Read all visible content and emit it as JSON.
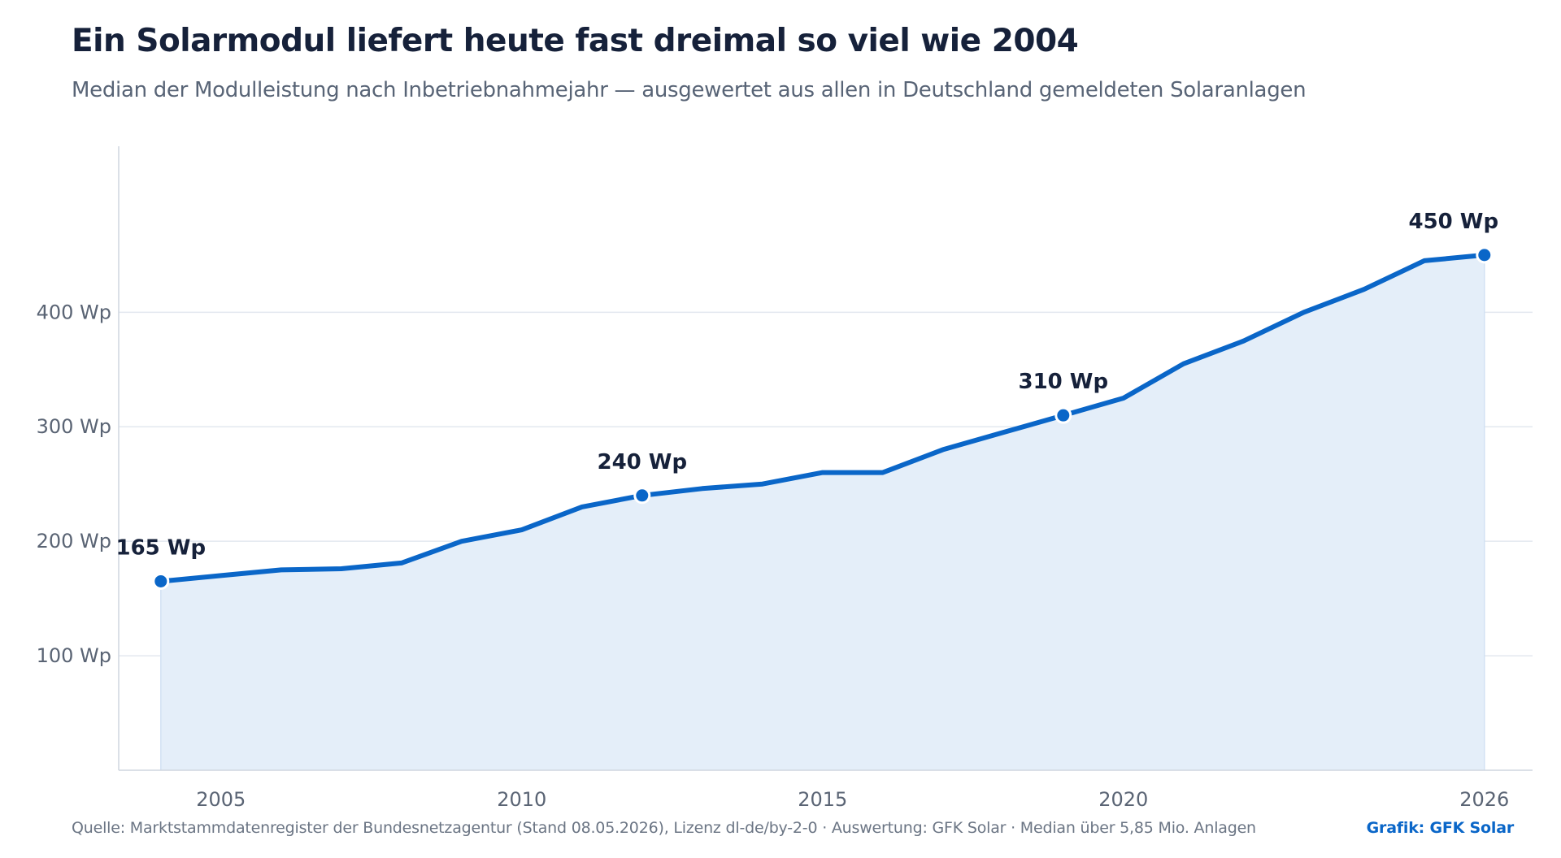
{
  "title": "Ein Solarmodul liefert heute fast dreimal so viel wie 2004",
  "subtitle": "Median der Modulleistung nach Inbetriebnahmejahr — ausgewertet aus allen in Deutschland gemeldeten Solaranlagen",
  "footer": {
    "source": "Quelle: Marktstammdatenregister der Bundesnetzagentur (Stand 08.05.2026), Lizenz dl-de/by-2-0 · Auswertung: GFK Solar · Median über 5,85 Mio. Anlagen",
    "credit": "Grafik: GFK Solar"
  },
  "colors": {
    "line": "#0a66c8",
    "area": "#e4eef9",
    "grid": "#e3e8ef",
    "axis": "#cfd6df"
  },
  "chart_data": {
    "type": "area",
    "title": "Ein Solarmodul liefert heute fast dreimal so viel wie 2004",
    "xlabel": "",
    "ylabel": "",
    "unit": "Wp",
    "xlim": [
      2003.3,
      2026.8
    ],
    "ylim": [
      0,
      545
    ],
    "x_ticks": [
      {
        "value": 2005,
        "label": "2005"
      },
      {
        "value": 2010,
        "label": "2010"
      },
      {
        "value": 2015,
        "label": "2015"
      },
      {
        "value": 2020,
        "label": "2020"
      },
      {
        "value": 2026,
        "label": "2026"
      }
    ],
    "y_ticks": [
      {
        "value": 100,
        "label": "100 Wp"
      },
      {
        "value": 200,
        "label": "200 Wp"
      },
      {
        "value": 300,
        "label": "300 Wp"
      },
      {
        "value": 400,
        "label": "400 Wp"
      }
    ],
    "grid": true,
    "legend": "none",
    "series": [
      {
        "x": [
          2004,
          2005,
          2006,
          2007,
          2008,
          2009,
          2010,
          2011,
          2012,
          2013,
          2014,
          2015,
          2016,
          2017,
          2018,
          2019,
          2020,
          2021,
          2022,
          2023,
          2024,
          2025,
          2026
        ],
        "values": [
          165,
          170,
          175,
          176,
          181,
          200,
          210,
          230,
          240,
          246,
          250,
          260,
          260,
          280,
          295,
          310,
          325,
          355,
          375,
          400,
          420,
          445,
          450
        ]
      }
    ],
    "annotations": [
      {
        "x": 2004,
        "y": 165,
        "label": "165 Wp"
      },
      {
        "x": 2012,
        "y": 240,
        "label": "240 Wp"
      },
      {
        "x": 2019,
        "y": 310,
        "label": "310 Wp"
      },
      {
        "x": 2026,
        "y": 450,
        "label": "450 Wp"
      }
    ]
  }
}
